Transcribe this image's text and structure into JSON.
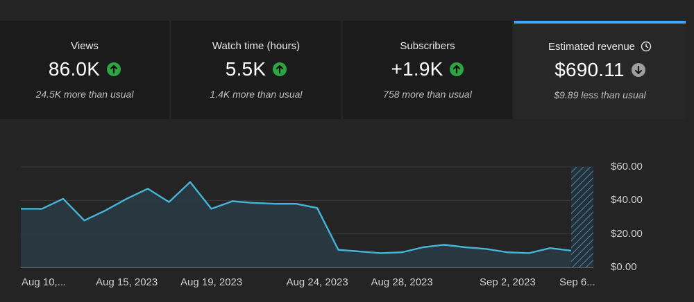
{
  "tabs": [
    {
      "label": "Views",
      "value": "86.0K",
      "trend": "up",
      "sub": "24.5K more than usual",
      "active": false
    },
    {
      "label": "Watch time (hours)",
      "value": "5.5K",
      "trend": "up",
      "sub": "1.4K more than usual",
      "active": false
    },
    {
      "label": "Subscribers",
      "value": "+1.9K",
      "trend": "up",
      "sub": "758 more than usual",
      "active": false
    },
    {
      "label": "Estimated revenue",
      "value": "$690.11",
      "trend": "down",
      "sub": "$9.89 less than usual",
      "active": true
    }
  ],
  "icons": {
    "up": "arrow-up-icon",
    "down": "arrow-down-icon",
    "clock": "clock-icon"
  },
  "colors": {
    "accent": "#3ea6ff",
    "up": "#2ba640",
    "down": "#9e9e9e",
    "line": "#45b5d9"
  },
  "chart_data": {
    "type": "area",
    "title": "",
    "xlabel": "",
    "ylabel": "",
    "y_ticks": [
      "$0.00",
      "$20.00",
      "$40.00",
      "$60.00"
    ],
    "ylim": [
      0,
      60
    ],
    "x_tick_labels": [
      "Aug 10,...",
      "Aug 15, 2023",
      "Aug 19, 2023",
      "Aug 24, 2023",
      "Aug 28, 2023",
      "Sep 2, 2023",
      "Sep 6..."
    ],
    "x_tick_indices": [
      0,
      5,
      9,
      14,
      18,
      23,
      27
    ],
    "series": [
      {
        "values": [
          35,
          35,
          41,
          28,
          34,
          41,
          47,
          39,
          51,
          35,
          39.5,
          38.5,
          38,
          38,
          35.5,
          10.5,
          9.5,
          8.5,
          9,
          12,
          13.5,
          12,
          11,
          9,
          8.5,
          11.5,
          10
        ]
      }
    ],
    "projection_region": "last day (hatched)",
    "grid": true
  }
}
